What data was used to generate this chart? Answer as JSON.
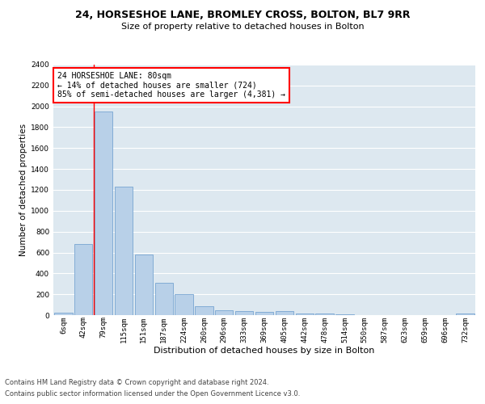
{
  "title1": "24, HORSESHOE LANE, BROMLEY CROSS, BOLTON, BL7 9RR",
  "title2": "Size of property relative to detached houses in Bolton",
  "xlabel": "Distribution of detached houses by size in Bolton",
  "ylabel": "Number of detached properties",
  "categories": [
    "6sqm",
    "42sqm",
    "79sqm",
    "115sqm",
    "151sqm",
    "187sqm",
    "224sqm",
    "260sqm",
    "296sqm",
    "333sqm",
    "369sqm",
    "405sqm",
    "442sqm",
    "478sqm",
    "514sqm",
    "550sqm",
    "587sqm",
    "623sqm",
    "659sqm",
    "696sqm",
    "732sqm"
  ],
  "values": [
    20,
    680,
    1950,
    1230,
    580,
    310,
    200,
    85,
    50,
    35,
    32,
    42,
    18,
    15,
    5,
    3,
    2,
    1,
    1,
    0,
    18
  ],
  "bar_color": "#b8d0e8",
  "bar_edge_color": "#6699cc",
  "annotation_text": "24 HORSESHOE LANE: 80sqm\n← 14% of detached houses are smaller (724)\n85% of semi-detached houses are larger (4,381) →",
  "annotation_box_color": "white",
  "annotation_box_edge_color": "red",
  "vline_color": "red",
  "vline_x_index": 2,
  "ylim": [
    0,
    2400
  ],
  "yticks": [
    0,
    200,
    400,
    600,
    800,
    1000,
    1200,
    1400,
    1600,
    1800,
    2000,
    2200,
    2400
  ],
  "footer1": "Contains HM Land Registry data © Crown copyright and database right 2024.",
  "footer2": "Contains public sector information licensed under the Open Government Licence v3.0.",
  "bg_color": "#dde8f0",
  "grid_color": "white",
  "title1_fontsize": 9,
  "title2_fontsize": 8,
  "xlabel_fontsize": 8,
  "ylabel_fontsize": 7.5,
  "tick_fontsize": 6.5,
  "annotation_fontsize": 7,
  "footer_fontsize": 6
}
